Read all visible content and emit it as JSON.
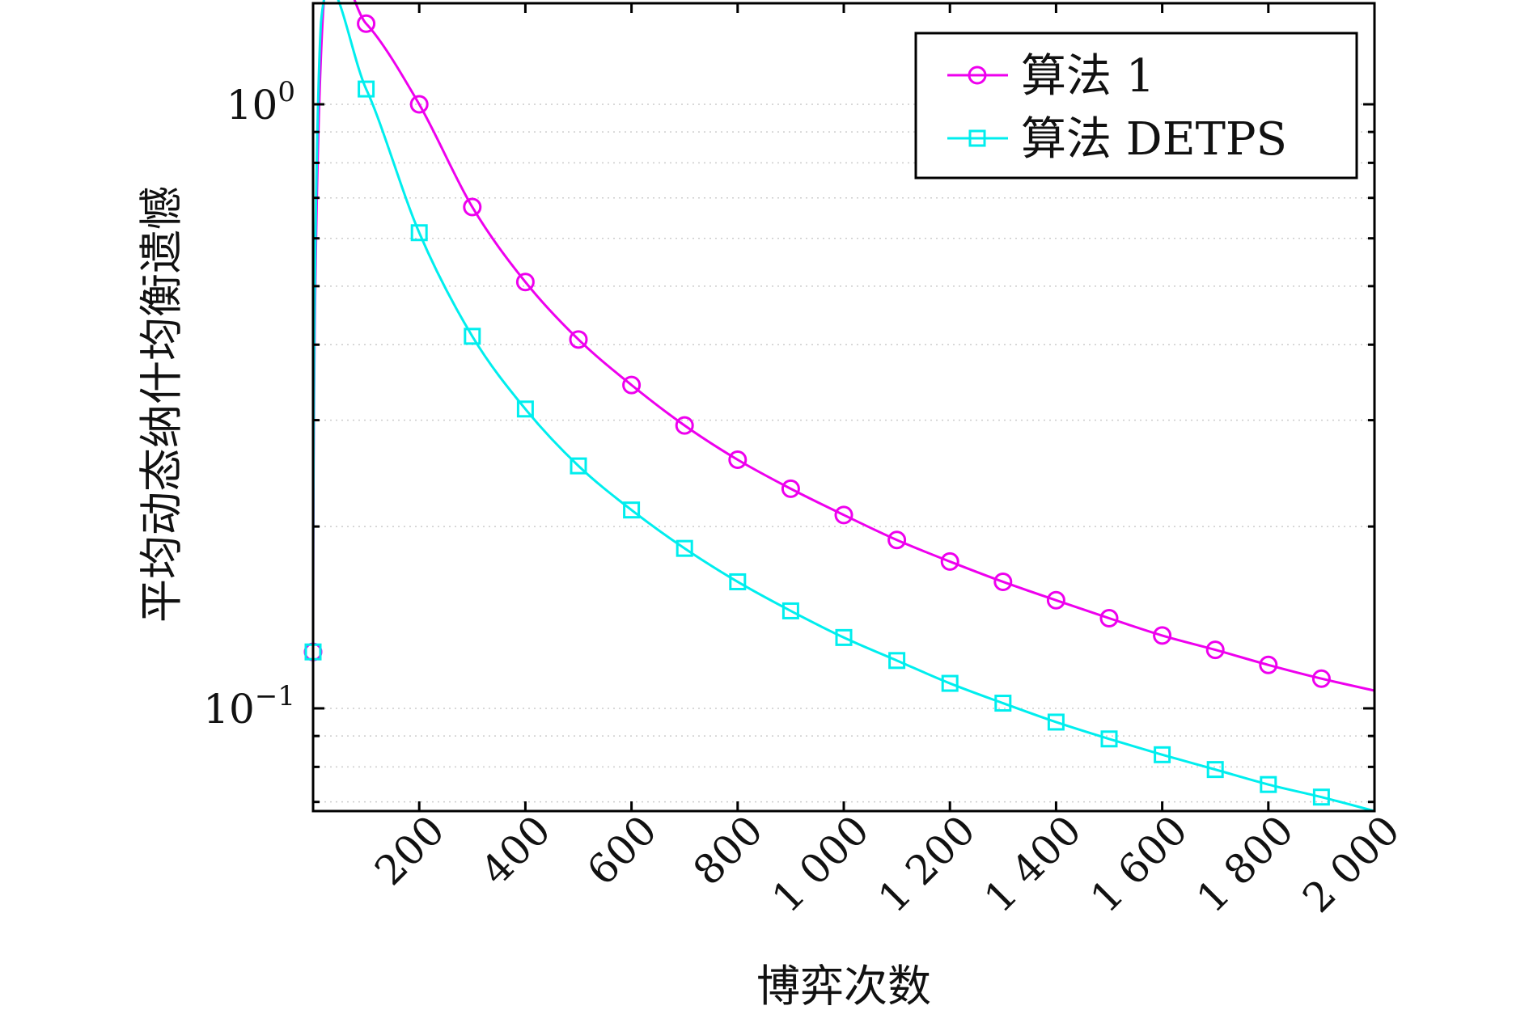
{
  "chart_data": {
    "type": "line",
    "title": "",
    "xlabel": "博弈次数",
    "ylabel": "平均动态纳什均衡遗憾",
    "xlim": [
      0,
      2000
    ],
    "ylim": [
      0.0676,
      1.47
    ],
    "yscale": "log",
    "grid": "dotted horizontal minor",
    "legend_position": "top-right",
    "xticks": [
      200,
      400,
      600,
      800,
      1000,
      1200,
      1400,
      1600,
      1800,
      2000
    ],
    "xtick_labels": [
      "200",
      "400",
      "600",
      "800",
      "1 000",
      "1 200",
      "1 400",
      "1 600",
      "1 800",
      "2 000"
    ],
    "yticks": [
      {
        "value": 1,
        "base": "10",
        "exp": "0"
      },
      {
        "value": 0.1,
        "base": "10",
        "exp": "−1"
      }
    ],
    "series": [
      {
        "name": "算法 1",
        "color": "#ee00ee",
        "marker": "circle",
        "x": [
          0,
          20,
          100,
          200,
          300,
          400,
          500,
          600,
          700,
          800,
          900,
          1000,
          1100,
          1200,
          1300,
          1400,
          1500,
          1600,
          1700,
          1800,
          1900,
          2000
        ],
        "y": [
          0.124,
          1.47,
          1.36,
          1.0,
          0.676,
          0.508,
          0.408,
          0.343,
          0.294,
          0.258,
          0.231,
          0.209,
          0.19,
          0.175,
          0.162,
          0.151,
          0.141,
          0.132,
          0.125,
          0.118,
          0.112,
          0.107
        ]
      },
      {
        "name": "算法 DETPS",
        "color": "#00eeee",
        "marker": "square",
        "x": [
          0,
          15,
          100,
          200,
          300,
          400,
          500,
          600,
          700,
          800,
          900,
          1000,
          1100,
          1200,
          1300,
          1400,
          1500,
          1600,
          1700,
          1800,
          1900,
          2000
        ],
        "y": [
          0.124,
          1.37,
          1.06,
          0.613,
          0.413,
          0.313,
          0.252,
          0.213,
          0.184,
          0.162,
          0.145,
          0.131,
          0.12,
          0.11,
          0.102,
          0.0949,
          0.089,
          0.0838,
          0.0792,
          0.0748,
          0.0713,
          0.0676
        ]
      }
    ]
  }
}
